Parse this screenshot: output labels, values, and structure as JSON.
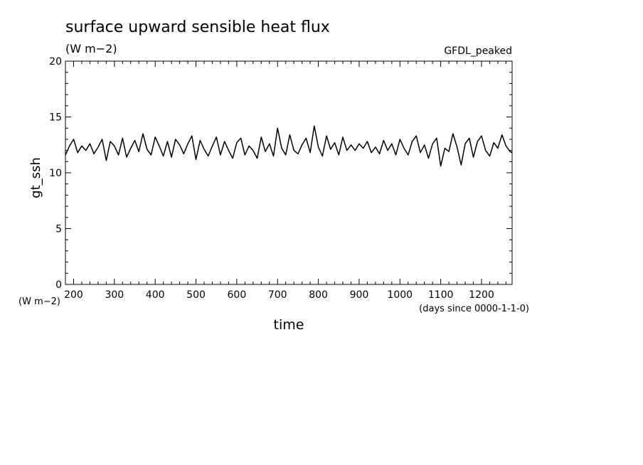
{
  "chart_data": {
    "type": "line",
    "title": "surface upward sensible heat flux",
    "units": "(W m−2)",
    "model_label": "GFDL_peaked",
    "ylabel": "gt_ssh",
    "y_unit_label": "(W m−2)",
    "xlabel": "time",
    "x_unit_label": "(days since 0000-1-1-0)",
    "xlim": [
      180,
      1275
    ],
    "ylim": [
      0,
      20
    ],
    "x_ticks": [
      200,
      300,
      400,
      500,
      600,
      700,
      800,
      900,
      1000,
      1100,
      1200
    ],
    "y_ticks": [
      0,
      5,
      10,
      15,
      20
    ],
    "grid": false,
    "line_color": "#000000",
    "series": [
      {
        "x": [
          180,
          190,
          200,
          210,
          220,
          230,
          240,
          250,
          260,
          270,
          280,
          290,
          300,
          310,
          320,
          330,
          340,
          350,
          360,
          370,
          380,
          390,
          400,
          410,
          420,
          430,
          440,
          450,
          460,
          470,
          480,
          490,
          500,
          510,
          520,
          530,
          540,
          550,
          560,
          570,
          580,
          590,
          600,
          610,
          620,
          630,
          640,
          650,
          660,
          670,
          680,
          690,
          700,
          710,
          720,
          730,
          740,
          750,
          760,
          770,
          780,
          790,
          800,
          810,
          820,
          830,
          840,
          850,
          860,
          870,
          880,
          890,
          900,
          910,
          920,
          930,
          940,
          950,
          960,
          970,
          980,
          990,
          1000,
          1010,
          1020,
          1030,
          1040,
          1050,
          1060,
          1070,
          1080,
          1090,
          1100,
          1110,
          1120,
          1130,
          1140,
          1150,
          1160,
          1170,
          1180,
          1190,
          1200,
          1210,
          1220,
          1230,
          1240,
          1250,
          1260,
          1270,
          1275
        ],
        "y": [
          11.6,
          12.4,
          13.0,
          11.8,
          12.4,
          12.0,
          12.6,
          11.7,
          12.3,
          13.0,
          11.1,
          12.8,
          12.4,
          11.6,
          13.1,
          11.4,
          12.2,
          12.9,
          11.9,
          13.5,
          12.1,
          11.6,
          13.2,
          12.4,
          11.5,
          12.8,
          11.4,
          13.0,
          12.5,
          11.7,
          12.6,
          13.3,
          11.2,
          12.9,
          12.1,
          11.5,
          12.4,
          13.2,
          11.6,
          12.8,
          12.0,
          11.3,
          12.7,
          13.1,
          11.6,
          12.4,
          12.0,
          11.3,
          13.2,
          11.9,
          12.6,
          11.5,
          14.0,
          12.2,
          11.6,
          13.4,
          12.0,
          11.7,
          12.5,
          13.1,
          11.8,
          14.2,
          12.3,
          11.5,
          13.3,
          12.1,
          12.7,
          11.6,
          13.2,
          12.0,
          12.5,
          12.0,
          12.6,
          12.2,
          12.8,
          11.8,
          12.3,
          11.7,
          12.9,
          12.0,
          12.6,
          11.6,
          13.0,
          12.2,
          11.6,
          12.8,
          13.3,
          11.8,
          12.5,
          11.3,
          12.6,
          13.1,
          10.6,
          12.2,
          11.9,
          13.5,
          12.3,
          10.7,
          12.6,
          13.1,
          11.4,
          12.8,
          13.3,
          12.0,
          11.5,
          12.7,
          12.2,
          13.4,
          12.4,
          11.9,
          11.8
        ]
      }
    ]
  }
}
